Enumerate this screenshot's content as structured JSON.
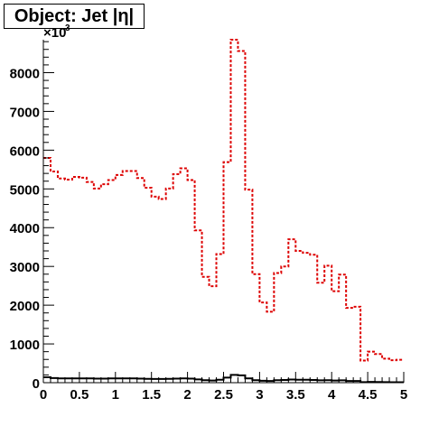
{
  "title": "Object: Jet |η|",
  "chart_data": {
    "type": "line",
    "title": "Object: Jet |η|",
    "xlabel": "",
    "ylabel": "",
    "xlim": [
      0,
      5
    ],
    "ylim": [
      0,
      8850
    ],
    "y_multiplier_label": "×10",
    "y_multiplier_exponent": "3",
    "x_ticks": [
      0,
      0.5,
      1,
      1.5,
      2,
      2.5,
      3,
      3.5,
      4,
      4.5,
      5
    ],
    "x_tick_labels": [
      "0",
      "0.5",
      "1",
      "1.5",
      "2",
      "2.5",
      "3",
      "3.5",
      "4",
      "4.5",
      "5"
    ],
    "y_ticks": [
      0,
      1000,
      2000,
      3000,
      4000,
      5000,
      6000,
      7000,
      8000
    ],
    "y_tick_labels": [
      "0",
      "1000",
      "2000",
      "3000",
      "4000",
      "5000",
      "6000",
      "7000",
      "8000"
    ],
    "bin_edges": [
      0,
      0.1,
      0.2,
      0.3,
      0.4,
      0.5,
      0.6,
      0.7,
      0.8,
      0.9,
      1.0,
      1.1,
      1.2,
      1.3,
      1.4,
      1.5,
      1.6,
      1.7,
      1.8,
      1.9,
      2.0,
      2.1,
      2.2,
      2.3,
      2.4,
      2.5,
      2.6,
      2.7,
      2.8,
      2.9,
      3.0,
      3.1,
      3.2,
      3.3,
      3.4,
      3.5,
      3.6,
      3.7,
      3.8,
      3.9,
      4.0,
      4.1,
      4.2,
      4.3,
      4.4,
      4.5,
      4.6,
      4.7,
      4.8,
      4.9,
      5.0
    ],
    "series": [
      {
        "color": "#dd0000",
        "style": "dashed-step",
        "values": [
          5800,
          5450,
          5270,
          5240,
          5310,
          5290,
          5180,
          5010,
          5120,
          5230,
          5360,
          5460,
          5460,
          5280,
          5030,
          4800,
          4740,
          5010,
          5380,
          5530,
          5230,
          3930,
          2730,
          2490,
          3320,
          5690,
          8850,
          8560,
          4980,
          2800,
          2070,
          1830,
          2830,
          3000,
          3700,
          3400,
          3350,
          3300,
          2580,
          3020,
          2360,
          2790,
          1930,
          1960,
          570,
          800,
          740,
          620,
          580,
          590
        ]
      },
      {
        "color": "#000000",
        "style": "solid-step",
        "values": [
          140,
          120,
          110,
          110,
          110,
          110,
          110,
          105,
          105,
          110,
          110,
          110,
          110,
          105,
          100,
          95,
          95,
          100,
          105,
          110,
          105,
          85,
          65,
          55,
          75,
          130,
          200,
          190,
          110,
          65,
          50,
          45,
          65,
          70,
          80,
          75,
          75,
          70,
          60,
          65,
          55,
          60,
          45,
          45,
          15,
          20,
          18,
          15,
          12,
          12
        ]
      }
    ],
    "grid": false,
    "legend": "none"
  }
}
